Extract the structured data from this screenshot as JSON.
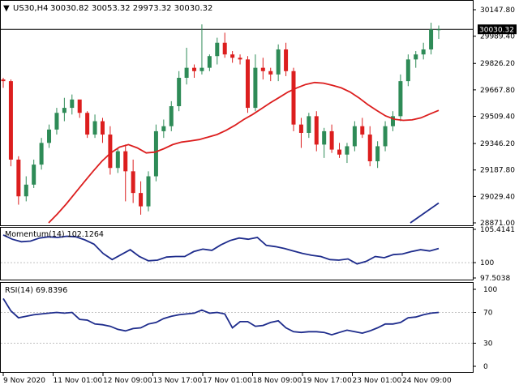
{
  "header": {
    "symbol": "US30,H4",
    "ohlc": "30030.82 30053.32 29973.32 30030.32"
  },
  "colors": {
    "bull": "#2e8b57",
    "bear": "#dc1e1e",
    "ma_fast": "#dc1e1e",
    "ma_slow": "#1e2c8c",
    "indicator": "#1e2c8c",
    "price_tag_bg": "#000000",
    "price_tag_text": "#ffffff",
    "grid": "#c0c0c0"
  },
  "price_axis": {
    "ticks": [
      "30147.80",
      "29989.40",
      "29826.20",
      "29667.80",
      "29509.40",
      "29346.20",
      "29187.80",
      "29029.40",
      "28871.00"
    ],
    "current_price": "30030.32"
  },
  "momentum": {
    "label": "Momentum(14) 102.1264",
    "ticks": [
      "105.4141",
      "100",
      "97.5038"
    ],
    "reference_level": 100,
    "ylim": [
      97.5038,
      105.4141
    ]
  },
  "rsi": {
    "label": "RSI(14) 69.8396",
    "ticks": [
      "100",
      "70",
      "30",
      "0"
    ],
    "levels": [
      70,
      30
    ],
    "ylim": [
      0,
      100
    ]
  },
  "time_axis": {
    "labels": [
      "9 Nov 2020",
      "11 Nov 01:00",
      "12 Nov 09:00",
      "13 Nov 17:00",
      "17 Nov 01:00",
      "18 Nov 09:00",
      "19 Nov 17:00",
      "23 Nov 01:00",
      "24 Nov 09:00"
    ]
  },
  "chart_data": {
    "type": "candlestick",
    "ylim": [
      28871.0,
      30147.8
    ],
    "candles": [
      [
        29730,
        29740,
        29680,
        29720
      ],
      [
        29720,
        29730,
        29210,
        29250
      ],
      [
        29250,
        29270,
        28980,
        29030
      ],
      [
        29030,
        29150,
        29000,
        29100
      ],
      [
        29100,
        29250,
        29080,
        29220
      ],
      [
        29220,
        29380,
        29190,
        29350
      ],
      [
        29350,
        29460,
        29320,
        29430
      ],
      [
        29430,
        29560,
        29400,
        29530
      ],
      [
        29530,
        29620,
        29480,
        29560
      ],
      [
        29560,
        29640,
        29520,
        29610
      ],
      [
        29610,
        29600,
        29500,
        29530
      ],
      [
        29530,
        29540,
        29380,
        29400
      ],
      [
        29400,
        29520,
        29380,
        29480
      ],
      [
        29480,
        29500,
        29350,
        29400
      ],
      [
        29400,
        29450,
        29160,
        29200
      ],
      [
        29200,
        29320,
        29170,
        29300
      ],
      [
        29300,
        29340,
        29000,
        29180
      ],
      [
        29180,
        29250,
        28990,
        29050
      ],
      [
        29050,
        29120,
        28920,
        28970
      ],
      [
        28970,
        29180,
        28940,
        29150
      ],
      [
        29150,
        29460,
        29120,
        29420
      ],
      [
        29420,
        29490,
        29380,
        29450
      ],
      [
        29450,
        29600,
        29420,
        29570
      ],
      [
        29570,
        29780,
        29540,
        29740
      ],
      [
        29740,
        29920,
        29700,
        29800
      ],
      [
        29800,
        29820,
        29740,
        29780
      ],
      [
        29780,
        30060,
        29760,
        29800
      ],
      [
        29800,
        29880,
        29780,
        29870
      ],
      [
        29870,
        29980,
        29820,
        29950
      ],
      [
        29950,
        30010,
        29860,
        29880
      ],
      [
        29880,
        29900,
        29830,
        29860
      ],
      [
        29860,
        29880,
        29820,
        29850
      ],
      [
        29850,
        29870,
        29530,
        29560
      ],
      [
        29560,
        29880,
        29540,
        29800
      ],
      [
        29800,
        29860,
        29730,
        29780
      ],
      [
        29780,
        29800,
        29720,
        29760
      ],
      [
        29760,
        29940,
        29720,
        29910
      ],
      [
        29910,
        29950,
        29750,
        29780
      ],
      [
        29780,
        29800,
        29420,
        29460
      ],
      [
        29460,
        29500,
        29320,
        29410
      ],
      [
        29410,
        29530,
        29380,
        29510
      ],
      [
        29510,
        29540,
        29300,
        29340
      ],
      [
        29340,
        29440,
        29260,
        29420
      ],
      [
        29420,
        29460,
        29290,
        29310
      ],
      [
        29310,
        29350,
        29260,
        29280
      ],
      [
        29280,
        29350,
        29230,
        29330
      ],
      [
        29330,
        29480,
        29300,
        29450
      ],
      [
        29450,
        29500,
        29380,
        29400
      ],
      [
        29400,
        29450,
        29210,
        29240
      ],
      [
        29240,
        29360,
        29200,
        29330
      ],
      [
        29330,
        29480,
        29300,
        29450
      ],
      [
        29450,
        29540,
        29420,
        29510
      ],
      [
        29510,
        29760,
        29480,
        29720
      ],
      [
        29720,
        29880,
        29690,
        29850
      ],
      [
        29850,
        29900,
        29800,
        29880
      ],
      [
        29880,
        29950,
        29850,
        29910
      ],
      [
        29910,
        30070,
        29880,
        30030
      ],
      [
        30030,
        30053,
        29973,
        30030
      ]
    ],
    "moving_averages": [
      {
        "values": [
          28871,
          28925,
          28985,
          29050,
          29115,
          29180,
          29240,
          29290,
          29325,
          29340,
          29320,
          29290,
          29295,
          29315,
          29340,
          29355,
          29362,
          29370,
          29385,
          29400,
          29425,
          29455,
          29490,
          29520,
          29555,
          29590,
          29622,
          29655,
          29680,
          29700,
          29712,
          29708,
          29695,
          29680,
          29655,
          29620,
          29580,
          29545,
          29512,
          29492,
          29485,
          29488,
          29500,
          29523,
          29545
        ]
      },
      {
        "values": [
          28871,
          28930,
          28990
        ]
      }
    ],
    "momentum_values": [
      104.5,
      103.8,
      103.4,
      103.5,
      104.0,
      104.2,
      104.1,
      104.3,
      104.2,
      103.7,
      103.0,
      101.5,
      100.5,
      101.3,
      102.1,
      101.0,
      100.3,
      100.4,
      100.9,
      101.0,
      101.0,
      101.8,
      102.2,
      102.0,
      102.9,
      103.6,
      104.0,
      103.8,
      104.1,
      102.8,
      102.6,
      102.3,
      101.9,
      101.5,
      101.2,
      101.0,
      100.5,
      100.4,
      100.6,
      99.8,
      100.2,
      101.0,
      100.8,
      101.3,
      101.4,
      101.8,
      102.1,
      101.9,
      102.3
    ],
    "rsi_values": [
      88,
      72,
      63,
      65,
      67,
      68,
      69,
      70,
      69,
      70,
      61,
      60,
      55,
      54,
      52,
      48,
      46,
      49,
      50,
      55,
      57,
      62,
      65,
      67,
      68,
      69,
      73,
      69,
      70,
      68,
      50,
      58,
      58,
      52,
      53,
      57,
      59,
      50,
      45,
      44,
      45,
      45,
      44,
      41,
      44,
      47,
      45,
      43,
      46,
      50,
      55,
      55,
      57,
      63,
      64,
      67,
      69,
      70
    ]
  }
}
